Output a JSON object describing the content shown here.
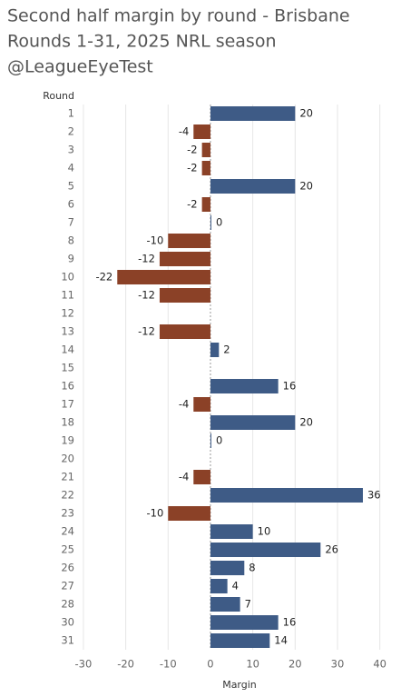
{
  "chart_data": {
    "type": "barh",
    "title": "Second half margin by round - Brisbane",
    "subtitle": "Rounds 1-31, 2025 NRL season",
    "credit": "@LeagueEyeTest",
    "y_label": "Round",
    "x_label": "Margin",
    "categories": [
      "1",
      "2",
      "3",
      "4",
      "5",
      "6",
      "7",
      "8",
      "9",
      "10",
      "11",
      "12",
      "13",
      "14",
      "15",
      "16",
      "17",
      "18",
      "19",
      "20",
      "21",
      "22",
      "23",
      "24",
      "25",
      "26",
      "27",
      "28",
      "30",
      "31"
    ],
    "values": [
      20,
      -4,
      -2,
      -2,
      20,
      -2,
      0,
      -10,
      -12,
      -22,
      -12,
      null,
      -12,
      2,
      null,
      16,
      -4,
      20,
      0,
      null,
      -4,
      36,
      -10,
      10,
      26,
      8,
      4,
      7,
      16,
      14
    ],
    "positive_color": "#3e5b86",
    "negative_color": "#8b4127",
    "xlim": [
      -32,
      42
    ],
    "xticks": [
      -30,
      -20,
      -10,
      0,
      10,
      20,
      30,
      40
    ],
    "grid": true
  }
}
